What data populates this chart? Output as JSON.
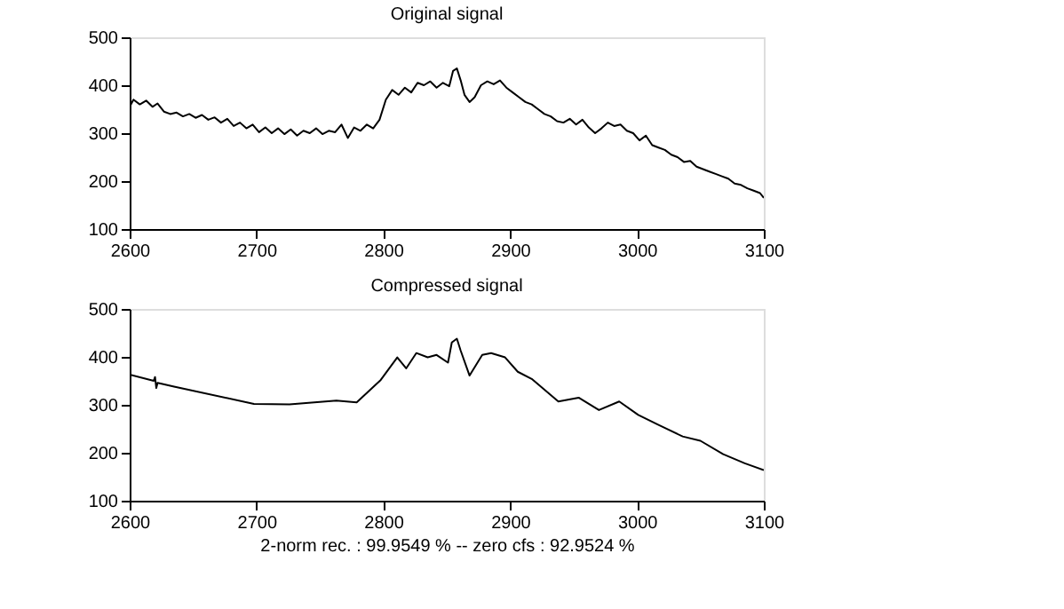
{
  "chart_data": [
    {
      "type": "line",
      "title": "Original signal",
      "xlim": [
        2600,
        3100
      ],
      "xticks": [
        2600,
        2700,
        2800,
        2900,
        3000,
        3100
      ],
      "ylim": [
        100,
        500
      ],
      "yticks": [
        100,
        200,
        300,
        400,
        500
      ],
      "grid": false,
      "x": [
        2600,
        2603,
        2608,
        2613,
        2618,
        2622,
        2627,
        2632,
        2637,
        2642,
        2647,
        2652,
        2657,
        2662,
        2667,
        2672,
        2677,
        2682,
        2687,
        2692,
        2697,
        2702,
        2707,
        2712,
        2717,
        2722,
        2727,
        2732,
        2737,
        2742,
        2747,
        2752,
        2757,
        2762,
        2767,
        2772,
        2777,
        2782,
        2787,
        2792,
        2797,
        2802,
        2807,
        2812,
        2817,
        2822,
        2827,
        2832,
        2837,
        2842,
        2847,
        2852,
        2855,
        2858,
        2861,
        2864,
        2868,
        2872,
        2877,
        2882,
        2887,
        2892,
        2897,
        2902,
        2907,
        2912,
        2917,
        2922,
        2927,
        2932,
        2937,
        2942,
        2947,
        2952,
        2957,
        2962,
        2967,
        2972,
        2977,
        2982,
        2987,
        2992,
        2997,
        3002,
        3007,
        3012,
        3017,
        3022,
        3027,
        3032,
        3037,
        3042,
        3047,
        3052,
        3057,
        3062,
        3067,
        3072,
        3077,
        3082,
        3087,
        3092,
        3097,
        3100
      ],
      "series": [
        {
          "color": "#000000",
          "values": [
            355,
            370,
            360,
            368,
            355,
            362,
            345,
            340,
            343,
            335,
            340,
            332,
            338,
            328,
            333,
            322,
            330,
            315,
            322,
            310,
            318,
            302,
            312,
            300,
            310,
            298,
            308,
            295,
            305,
            300,
            310,
            298,
            305,
            302,
            318,
            290,
            312,
            305,
            318,
            310,
            328,
            370,
            390,
            380,
            395,
            385,
            405,
            400,
            408,
            395,
            405,
            398,
            430,
            435,
            410,
            380,
            365,
            375,
            400,
            408,
            402,
            410,
            395,
            385,
            375,
            365,
            360,
            350,
            340,
            335,
            325,
            322,
            330,
            318,
            328,
            312,
            300,
            310,
            322,
            315,
            318,
            305,
            300,
            285,
            295,
            275,
            270,
            265,
            255,
            250,
            240,
            242,
            230,
            225,
            220,
            215,
            210,
            205,
            195,
            192,
            185,
            180,
            175,
            165
          ]
        }
      ]
    },
    {
      "type": "line",
      "title": "Compressed signal",
      "xlabel": "2-norm rec. : 99.9549 %  -- zero cfs : 92.9524 %",
      "xlim": [
        2600,
        3100
      ],
      "xticks": [
        2600,
        2700,
        2800,
        2900,
        3000,
        3100
      ],
      "ylim": [
        100,
        500
      ],
      "yticks": [
        100,
        200,
        300,
        400,
        500
      ],
      "grid": false,
      "x": [
        2600,
        2619,
        2620,
        2621,
        2622,
        2635,
        2698,
        2726,
        2763,
        2779,
        2798,
        2811,
        2818,
        2826,
        2835,
        2842,
        2851,
        2854,
        2858,
        2861,
        2868,
        2878,
        2885,
        2896,
        2906,
        2917,
        2938,
        2954,
        2970,
        2986,
        3001,
        3017,
        3036,
        3050,
        3068,
        3085,
        3100
      ],
      "series": [
        {
          "color": "#000000",
          "values": [
            363,
            350,
            358,
            335,
            346,
            338,
            302,
            301,
            309,
            305,
            352,
            399,
            376,
            408,
            399,
            404,
            388,
            430,
            438,
            413,
            361,
            404,
            408,
            399,
            369,
            354,
            307,
            315,
            289,
            307,
            279,
            258,
            234,
            225,
            197,
            178,
            164
          ]
        }
      ]
    }
  ]
}
